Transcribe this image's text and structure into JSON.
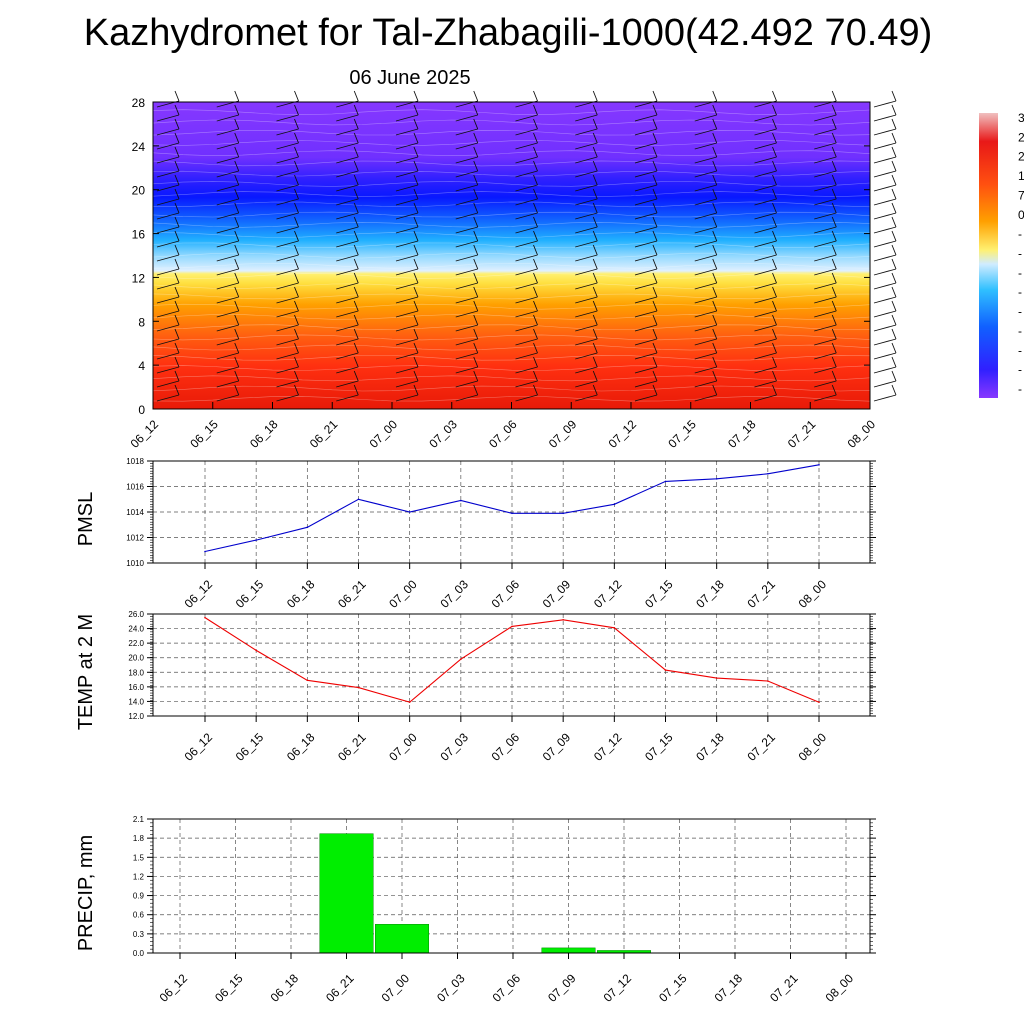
{
  "title": "Kazhydromet for Tal-Zhabagili-1000(42.492 70.49)",
  "subtitle": "06 June 2025",
  "chart_data": [
    {
      "type": "heatmap",
      "description_free": true,
      "x_tick_labels": [
        "06_12",
        "06_15",
        "06_18",
        "06_21",
        "07_00",
        "07_03",
        "07_06",
        "07_09",
        "07_12",
        "07_15",
        "07_18",
        "07_21",
        "08_00"
      ],
      "y_tick_labels": [
        "0",
        "4",
        "8",
        "12",
        "16",
        "20",
        "24",
        "28"
      ],
      "ylim": [
        0,
        28
      ],
      "colorbar_labels": [
        "3",
        "2",
        "2",
        "1",
        "7",
        "0",
        "-",
        "-",
        "-",
        "-",
        "-",
        "-",
        "-",
        "-",
        "-"
      ],
      "colors": {
        "high": "#ff1a0a",
        "mid_warm": "#ffa800",
        "zero": "#fff060",
        "cool": "#40c0ff",
        "cold": "#1010ff",
        "coldest": "#8030ff"
      }
    },
    {
      "type": "line",
      "ylabel": "PMSL",
      "x_tick_labels": [
        "06_12",
        "06_15",
        "06_18",
        "06_21",
        "07_00",
        "07_03",
        "07_06",
        "07_09",
        "07_12",
        "07_15",
        "07_18",
        "07_21",
        "08_00"
      ],
      "y_tick_labels": [
        "1010",
        "1012",
        "1014",
        "1016",
        "1018"
      ],
      "ylim": [
        1010,
        1018
      ],
      "series": [
        {
          "values": [
            1010.9,
            1011.8,
            1012.8,
            1015.0,
            1014.0,
            1014.9,
            1013.9,
            1013.9,
            1014.6,
            1016.4,
            1016.6,
            1017.0,
            1017.7
          ],
          "color": "#0000cc"
        }
      ]
    },
    {
      "type": "line",
      "ylabel": "TEMP at 2 M",
      "x_tick_labels": [
        "06_12",
        "06_15",
        "06_18",
        "06_21",
        "07_00",
        "07_03",
        "07_06",
        "07_09",
        "07_12",
        "07_15",
        "07_18",
        "07_21",
        "08_00"
      ],
      "y_tick_labels": [
        "12.0",
        "14.0",
        "16.0",
        "18.0",
        "20.0",
        "22.0",
        "24.0",
        "26.0"
      ],
      "ylim": [
        12,
        26
      ],
      "series": [
        {
          "values": [
            25.5,
            21.0,
            16.9,
            15.9,
            13.9,
            19.8,
            24.3,
            25.2,
            24.1,
            18.3,
            17.2,
            16.8,
            13.9
          ],
          "color": "#ee0000"
        }
      ]
    },
    {
      "type": "bar",
      "ylabel": "PRECIP, mm",
      "categories": [
        "06_12",
        "06_15",
        "06_18",
        "06_21",
        "07_00",
        "07_03",
        "07_06",
        "07_09",
        "07_12",
        "07_15",
        "07_18",
        "07_21",
        "08_00"
      ],
      "y_tick_labels": [
        "0.0",
        "0.3",
        "0.6",
        "0.9",
        "1.2",
        "1.5",
        "1.8",
        "2.1"
      ],
      "ylim": [
        0,
        2.1
      ],
      "values": [
        0,
        0,
        0,
        1.87,
        0.45,
        0,
        0,
        0.08,
        0.04,
        0,
        0,
        0,
        0
      ],
      "color": "#00ee00"
    }
  ]
}
